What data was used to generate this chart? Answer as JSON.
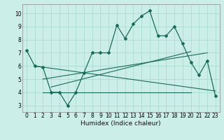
{
  "title": "",
  "xlabel": "Humidex (Indice chaleur)",
  "bg_color": "#cceee8",
  "line_color": "#1a6b5a",
  "grid_color": "#aaddcc",
  "xlim": [
    -0.5,
    23.5
  ],
  "ylim": [
    2.5,
    10.7
  ],
  "xticks": [
    0,
    1,
    2,
    3,
    4,
    5,
    6,
    7,
    8,
    9,
    10,
    11,
    12,
    13,
    14,
    15,
    16,
    17,
    18,
    19,
    20,
    21,
    22,
    23
  ],
  "yticks": [
    3,
    4,
    5,
    6,
    7,
    8,
    9,
    10
  ],
  "main_curve_x": [
    0,
    1,
    2,
    3,
    4,
    5,
    6,
    7,
    8,
    9,
    10,
    11,
    12,
    13,
    14,
    15,
    16,
    17,
    18,
    19,
    20,
    21,
    22,
    23
  ],
  "main_curve_y": [
    7.2,
    6.0,
    5.9,
    4.0,
    4.0,
    3.0,
    4.0,
    5.5,
    7.0,
    7.0,
    7.0,
    9.1,
    8.1,
    9.2,
    9.8,
    10.2,
    8.3,
    8.3,
    9.0,
    7.7,
    6.3,
    5.3,
    6.4,
    3.7
  ],
  "line1_x": [
    1,
    23
  ],
  "line1_y": [
    6.0,
    4.1
  ],
  "line2_x": [
    2,
    22
  ],
  "line2_y": [
    5.0,
    7.0
  ],
  "line3_x": [
    3,
    20
  ],
  "line3_y": [
    4.4,
    7.1
  ],
  "line4_x": [
    2,
    20
  ],
  "line4_y": [
    4.0,
    4.0
  ],
  "tick_fontsize": 5.5,
  "xlabel_fontsize": 6.5
}
